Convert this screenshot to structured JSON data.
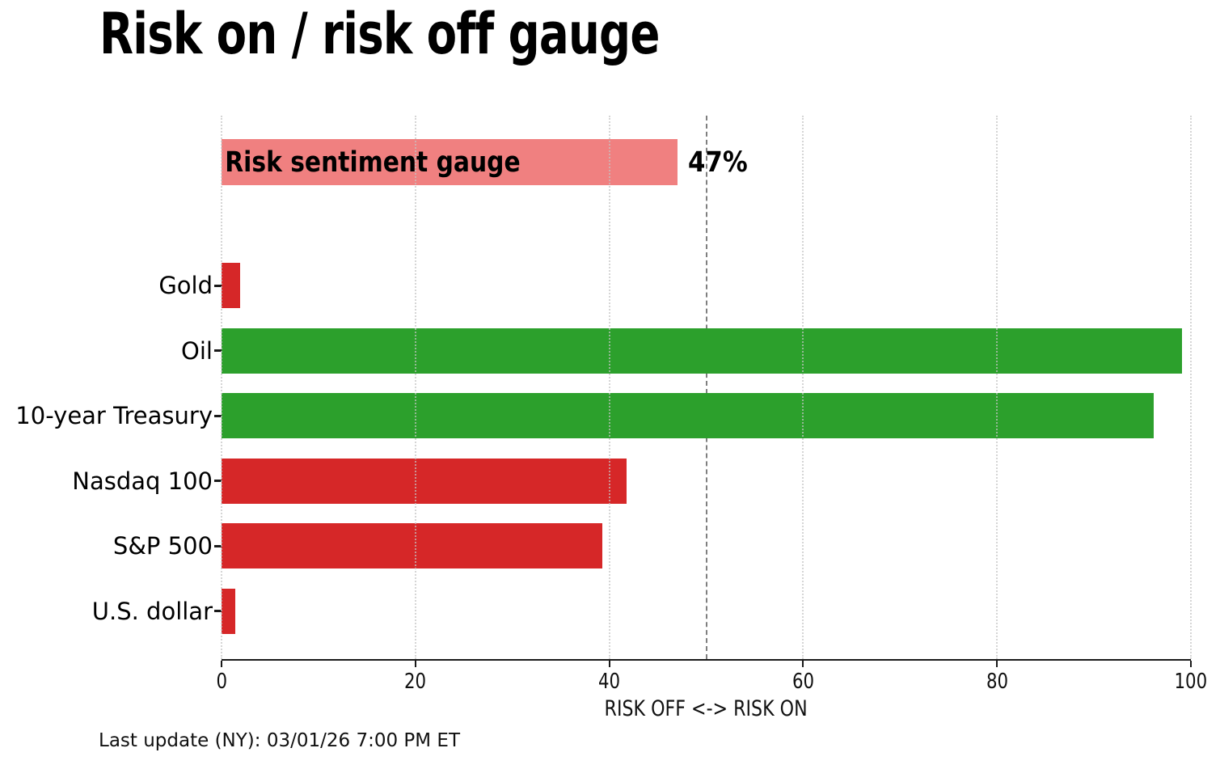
{
  "footer": {
    "last_update": "Last update (NY): 03/01/26 7:00 PM ET"
  },
  "chart_data": {
    "type": "bar",
    "orientation": "horizontal",
    "title": "Risk on / risk off gauge",
    "xlabel": "RISK OFF <-> RISK ON",
    "ylabel": "",
    "xlim": [
      0,
      100
    ],
    "x_ticks": [
      0,
      20,
      40,
      60,
      80,
      100
    ],
    "grid": "vertical-dotted",
    "legend": "none",
    "reference_line_x": 50,
    "gauge": {
      "label": "Risk sentiment gauge",
      "value": 47,
      "display_value": "47%",
      "color": "#f08080"
    },
    "categories": [
      "Gold",
      "Oil",
      "10-year Treasury",
      "Nasdaq 100",
      "S&P 500",
      "U.S. dollar"
    ],
    "values": [
      1.9,
      99.1,
      96.2,
      41.8,
      39.3,
      1.4
    ],
    "bar_colors": [
      "#d62728",
      "#2ca02c",
      "#2ca02c",
      "#d62728",
      "#d62728",
      "#d62728"
    ],
    "colors": {
      "risk_on": "#2ca02c",
      "risk_off": "#d62728",
      "gauge": "#f08080",
      "reference_line": "#7f7f7f",
      "gridline": "#c4c4c4",
      "text": "#000000"
    }
  }
}
